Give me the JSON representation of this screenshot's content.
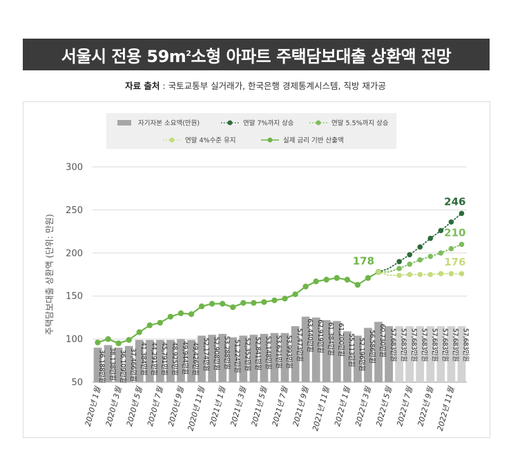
{
  "title": {
    "main": "서울시 전용 59m",
    "sup": "2",
    "rest": " 소형 아파트 주택담보대출 상환액 전망"
  },
  "source": {
    "label": "자료 출처",
    "text": " : 국토교통부 실거래가, 한국은행 경제통계시스템, 직방 재가공"
  },
  "chart_data": {
    "type": "bar",
    "ylabel": "주택담보대출 상환액 (단위: 만원)",
    "ylim": [
      50,
      300
    ],
    "yticks": [
      50,
      100,
      150,
      200,
      250,
      300
    ],
    "grid": true,
    "legend_placement": "top",
    "legend": [
      {
        "key": "own",
        "label": "자기자본 소요액(만원)",
        "kind": "bar",
        "color": "#a6a6a6"
      },
      {
        "key": "r7",
        "label": "연말 7%까지 상승",
        "kind": "dotted",
        "color": "#2e6b3a"
      },
      {
        "key": "r55",
        "label": "연말 5.5%까지 상승",
        "kind": "dotted",
        "color": "#7cbd5c"
      },
      {
        "key": "r4",
        "label": "연말 4%수준 유지",
        "kind": "dotted",
        "color": "#c4dc7c"
      },
      {
        "key": "actual",
        "label": "실제 금리 기반 산출액",
        "kind": "solid",
        "color": "#6fb54a"
      }
    ],
    "categories": [
      "2020년 1월",
      "2020년 2월",
      "2020년 3월",
      "2020년 4월",
      "2020년 5월",
      "2020년 6월",
      "2020년 7월",
      "2020년 8월",
      "2020년 9월",
      "2020년 10월",
      "2020년 11월",
      "2020년 12월",
      "2021년 1월",
      "2021년 2월",
      "2021년 3월",
      "2021년 4월",
      "2021년 5월",
      "2021년 6월",
      "2021년 7월",
      "2021년 8월",
      "2021년 9월",
      "2021년 10월",
      "2021년 11월",
      "2021년 12월",
      "2022년 1월",
      "2022년 2월",
      "2022년 3월",
      "2022년 4월",
      "2022년 5월",
      "2022년 6월",
      "2022년 7월",
      "2022년 8월",
      "2022년 9월",
      "2022년 10월",
      "2022년 11월",
      "2022년 12월"
    ],
    "tick_labels": [
      "2020년 1월",
      "2020년 3월",
      "2020년 5월",
      "2020년 7월",
      "2020년 9월",
      "2020년 11월",
      "2021년 1월",
      "2021년 3월",
      "2021년 5월",
      "2021년 7월",
      "2021년 9월",
      "2021년 11월",
      "2022년 1월",
      "2022년 3월",
      "2022년 5월",
      "2022년 7월",
      "2022년 9월",
      "2022년 11월"
    ],
    "bar_labels": [
      "36,188만원",
      "38,138만원",
      "36,109만원",
      "37,466만원",
      "41,384만원",
      "44,291만원",
      "45,791만원",
      "48,925만원",
      "49,944만원",
      "49,426만원",
      "52,174만원",
      "52,908만원",
      "53,288만원",
      "51,224만원",
      "52,352만원",
      "52,841만원",
      "53,148만원",
      "53,621만원",
      "53,993만원",
      "57,473만원",
      "63,440만원",
      "62,919만원",
      "61,384만원",
      "61,200만원",
      "55,113만원",
      "52,196만원",
      "56,586만원",
      "60,730만원",
      "57,683만원",
      "57,683만원",
      "57,683만원",
      "57,683만원",
      "57,683만원",
      "57,683만원",
      "57,683만원",
      "57,683만원"
    ],
    "bar_heights": [
      90,
      93,
      90,
      92,
      99,
      99,
      99,
      99,
      100,
      99,
      104,
      105,
      106,
      102,
      104,
      105,
      106,
      107,
      107,
      115,
      126,
      125,
      122,
      121,
      109,
      104,
      113,
      120,
      115,
      115,
      115,
      115,
      115,
      115,
      115,
      115
    ],
    "bar_projected_from": 29,
    "series": [
      {
        "key": "actual",
        "values": [
          96,
          100,
          95,
          99,
          108,
          116,
          119,
          126,
          130,
          129,
          138,
          141,
          141,
          137,
          142,
          142,
          143,
          145,
          147,
          152,
          161,
          167,
          169,
          171,
          169,
          163,
          171,
          178,
          null,
          null,
          null,
          null,
          null,
          null,
          null,
          null
        ]
      },
      {
        "key": "r7",
        "values": [
          null,
          null,
          null,
          null,
          null,
          null,
          null,
          null,
          null,
          null,
          null,
          null,
          null,
          null,
          null,
          null,
          null,
          null,
          null,
          null,
          null,
          null,
          null,
          null,
          null,
          null,
          null,
          178,
          182,
          190,
          198,
          207,
          217,
          226,
          236,
          246
        ]
      },
      {
        "key": "r55",
        "values": [
          null,
          null,
          null,
          null,
          null,
          null,
          null,
          null,
          null,
          null,
          null,
          null,
          null,
          null,
          null,
          null,
          null,
          null,
          null,
          null,
          null,
          null,
          null,
          null,
          null,
          null,
          null,
          178,
          178,
          182,
          187,
          192,
          196,
          200,
          205,
          210
        ]
      },
      {
        "key": "r4",
        "values": [
          null,
          null,
          null,
          null,
          null,
          null,
          null,
          null,
          null,
          null,
          null,
          null,
          null,
          null,
          null,
          null,
          null,
          null,
          null,
          null,
          null,
          null,
          null,
          null,
          null,
          null,
          null,
          178,
          174,
          174,
          175,
          175,
          175,
          176,
          176,
          176
        ]
      }
    ],
    "annotations": [
      {
        "text": "178",
        "series": "actual",
        "index": 27,
        "color": "#6fb54a"
      },
      {
        "text": "246",
        "series": "r7",
        "index": 35,
        "color": "#2e6b3a"
      },
      {
        "text": "210",
        "series": "r55",
        "index": 35,
        "color": "#7cbd5c"
      },
      {
        "text": "176",
        "series": "r4",
        "index": 35,
        "color": "#c4dc7c"
      }
    ]
  }
}
